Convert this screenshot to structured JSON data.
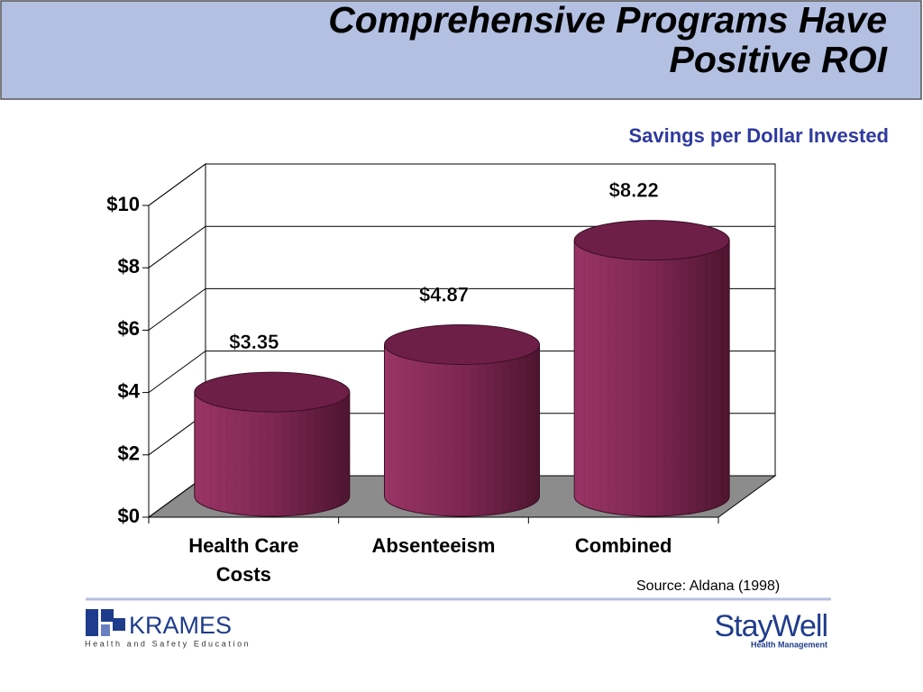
{
  "chart_data": {
    "type": "bar3d",
    "title": "Comprehensive Programs Have Positive ROI",
    "subtitle": "Savings per Dollar Invested",
    "categories": [
      "Health Care Costs",
      "Absenteeism",
      "Combined"
    ],
    "values": [
      3.35,
      4.87,
      8.22
    ],
    "value_labels": [
      "$3.35",
      "$4.87",
      "$8.22"
    ],
    "color": "#7a2550",
    "ylim": [
      0,
      10
    ],
    "yticks": [
      {
        "value": 0,
        "label": "$0"
      },
      {
        "value": 2,
        "label": "$2"
      },
      {
        "value": 4,
        "label": "$4"
      },
      {
        "value": 6,
        "label": "$6"
      },
      {
        "value": 8,
        "label": "$8"
      },
      {
        "value": 10,
        "label": "$10"
      }
    ],
    "grid": true,
    "source": "Source: Aldana (1998)"
  },
  "footer": {
    "left_logo": "KRAMES",
    "left_tagline": "Health and Safety Education",
    "right_logo": "StayWell",
    "right_tagline": "Health Management"
  }
}
